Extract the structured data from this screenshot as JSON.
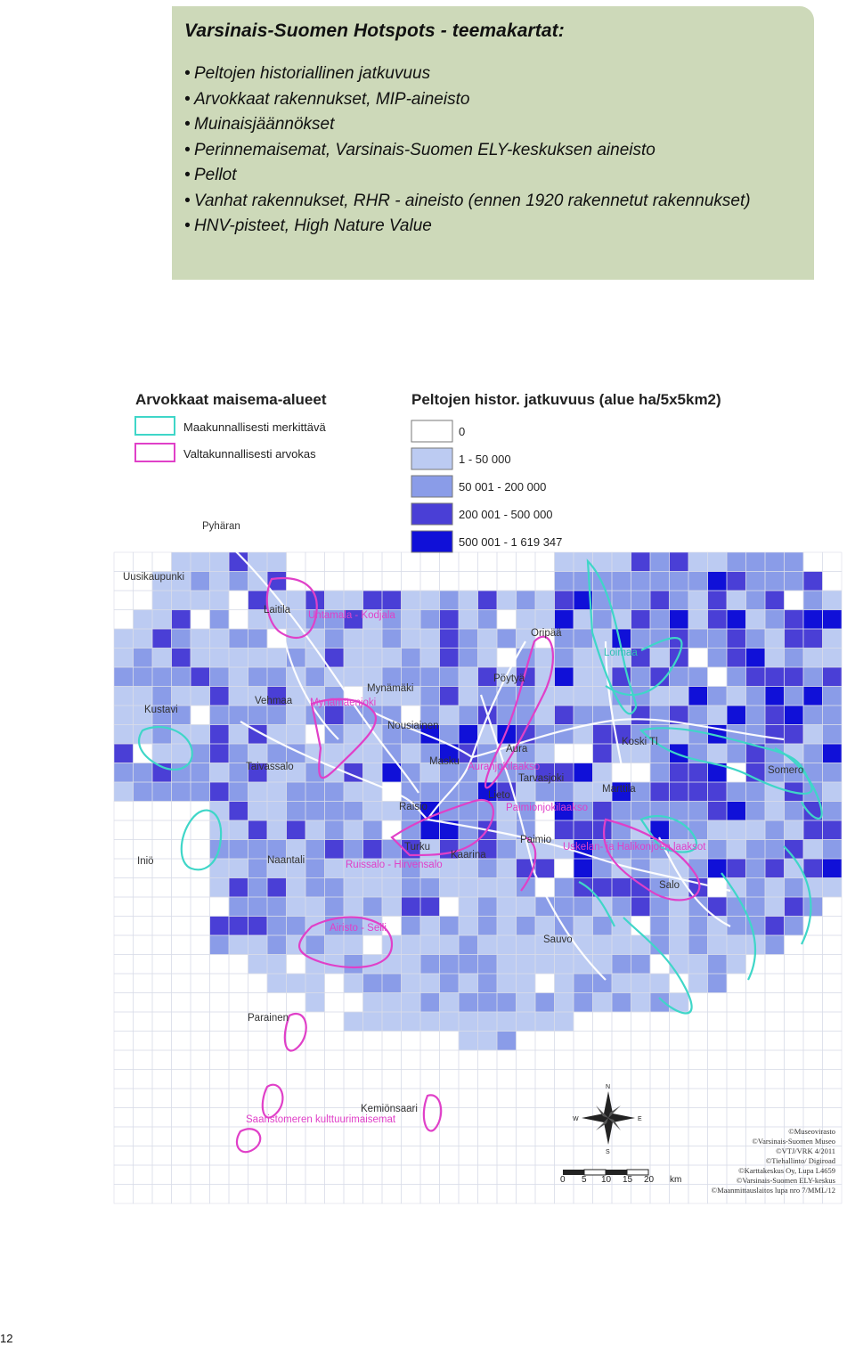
{
  "hotspots": {
    "title": "Varsinais-Suomen Hotspots - teemakartat:",
    "items": [
      "Peltojen historiallinen jatkuvuus",
      "Arvokkaat rakennukset, MIP-aineisto",
      "Muinaisjäännökset",
      "Perinnemaisemat, Varsinais-Suomen ELY-keskuksen aineisto",
      "Pellot",
      "Vanhat rakennukset, RHR - aineisto (ennen 1920 rakennetut rakennukset)",
      "HNV-pisteet, High Nature Value"
    ]
  },
  "map": {
    "landscape_legend": {
      "title": "Arvokkaat maisema-alueet",
      "entries": [
        {
          "label": "Maakunnallisesti merkittävä",
          "color": "#3fd6c8"
        },
        {
          "label": "Valtakunnallisesti arvokas",
          "color": "#e040c8"
        }
      ]
    },
    "field_legend": {
      "title": "Peltojen histor. jatkuvuus (alue ha/5x5km2)",
      "classes": [
        {
          "label": "0",
          "color": "#ffffff"
        },
        {
          "label": "1 - 50 000",
          "color": "#bccbf2"
        },
        {
          "label": "50 001 - 200 000",
          "color": "#8a9ce8"
        },
        {
          "label": "200 001 - 500 000",
          "color": "#4a3fd6"
        },
        {
          "label": "500 001 - 1 619 347",
          "color": "#1010d8"
        }
      ]
    },
    "places": [
      "Pyhäran",
      "Uusikaupunki",
      "Laitila",
      "Untamala - Kodjala",
      "Oripää",
      "Loimaa",
      "Pöytyä",
      "Mynämäki",
      "Vehmaa",
      "Mynämäenjoki",
      "Kustavi",
      "Nousiainen",
      "Koski Tl",
      "Aura",
      "Masku",
      "Auranjokilaakso",
      "Somero",
      "Taivassalo",
      "Tarvasjoki",
      "Marttila",
      "Lieto",
      "Raisio",
      "Naantali",
      "Turku",
      "Paimionjokilaakso",
      "Paimio",
      "Uskelan- ja Halikonjoen laaksot",
      "Kaarina",
      "Ruissalo - Hirvensalo",
      "Salo",
      "Airisto - Seili",
      "Sauvo",
      "Parainen",
      "Kemiönsaari",
      "Saaristomeren kulttuurimaisemat",
      "Iniö"
    ],
    "scale_bar": {
      "ticks": [
        "0",
        "5",
        "10",
        "15",
        "20"
      ],
      "unit": "km"
    },
    "credits": [
      "©Museovirasto",
      "©Varsinais-Suomen Museo",
      "©VTJ/VRK 4/2011",
      "©Tiehallinto/ Digiroad",
      "©Karttakeskus Oy, Lupa L4659",
      "©Varsinais-Suomen ELY-keskus",
      "©Maanmittauslaitos lupa nro 7/MML/12"
    ],
    "compass": {
      "n": "N",
      "s": "S",
      "e": "E",
      "w": "W"
    }
  },
  "page": {
    "number": "12"
  }
}
